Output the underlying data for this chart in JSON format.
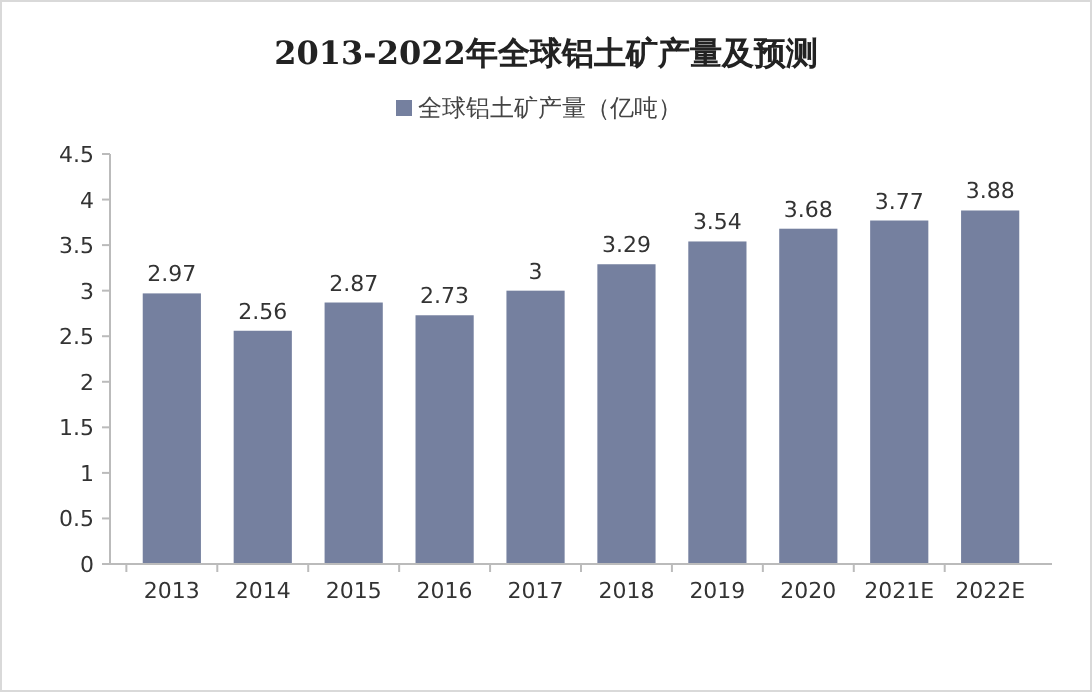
{
  "chart_data": {
    "type": "bar",
    "title": "2013-2022年全球铝土矿产量及预测",
    "categories": [
      "2013",
      "2014",
      "2015",
      "2016",
      "2017",
      "2018",
      "2019",
      "2020",
      "2021E",
      "2022E"
    ],
    "series": [
      {
        "name": "全球铝土矿产量（亿吨）",
        "color": "#75809f",
        "values": [
          2.97,
          2.56,
          2.87,
          2.73,
          3,
          3.29,
          3.54,
          3.68,
          3.77,
          3.88
        ]
      }
    ],
    "ylim": [
      0,
      4.5
    ],
    "yticks": [
      0,
      0.5,
      1,
      1.5,
      2,
      2.5,
      3,
      3.5,
      4,
      4.5
    ],
    "data_labels": true,
    "legend": "top",
    "grid": false
  }
}
